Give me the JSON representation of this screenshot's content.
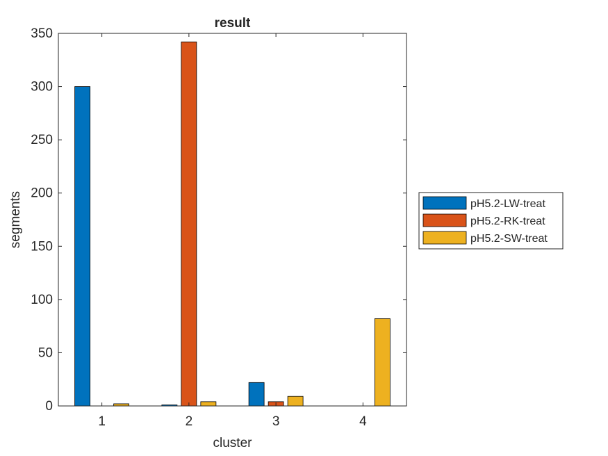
{
  "chart_data": {
    "type": "bar",
    "title": "result",
    "xlabel": "cluster",
    "ylabel": "segments",
    "categories": [
      "1",
      "2",
      "3",
      "4"
    ],
    "ylim": [
      0,
      350
    ],
    "yticks": [
      0,
      50,
      100,
      150,
      200,
      250,
      300,
      350
    ],
    "grid": false,
    "legend_position": "outside-right",
    "series": [
      {
        "name": "pH5.2-LW-treat",
        "color": "#0072BD",
        "values": [
          300,
          1,
          22,
          0
        ]
      },
      {
        "name": "pH5.2-RK-treat",
        "color": "#D95319",
        "values": [
          0,
          342,
          4,
          0
        ]
      },
      {
        "name": "pH5.2-SW-treat",
        "color": "#EDB120",
        "values": [
          2,
          4,
          9,
          82
        ]
      }
    ]
  }
}
